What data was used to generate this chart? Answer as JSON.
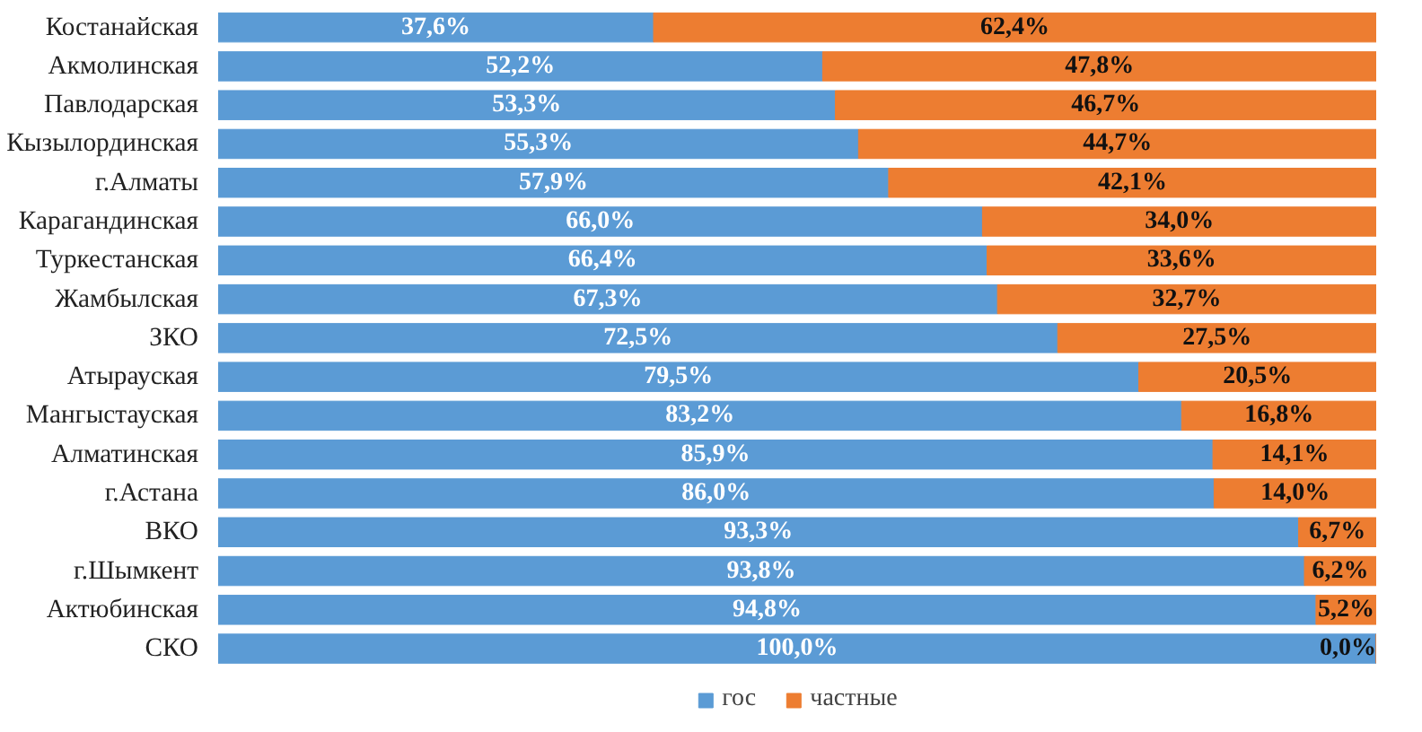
{
  "chart_data": {
    "type": "bar",
    "orientation": "horizontal",
    "stacked": true,
    "categories": [
      "Костанайская",
      "Акмолинская",
      "Павлодарская",
      "Кызылординская",
      "г.Алматы",
      "Карагандинская",
      "Туркестанская",
      "Жамбылская",
      "ЗКО",
      "Атырауская",
      "Мангыстауская",
      "Алматинская",
      "г.Астана",
      "ВКО",
      "г.Шымкент",
      "Актюбинская",
      "СКО"
    ],
    "series": [
      {
        "name": "гос",
        "color": "#5b9bd5",
        "values": [
          37.6,
          52.2,
          53.3,
          55.3,
          57.9,
          66.0,
          66.4,
          67.3,
          72.5,
          79.5,
          83.2,
          85.9,
          86.0,
          93.3,
          93.8,
          94.8,
          100.0
        ],
        "value_labels": [
          "37,6%",
          "52,2%",
          "53,3%",
          "55,3%",
          "57,9%",
          "66,0%",
          "66,4%",
          "67,3%",
          "72,5%",
          "79,5%",
          "83,2%",
          "85,9%",
          "86,0%",
          "93,3%",
          "93,8%",
          "94,8%",
          "100,0%"
        ]
      },
      {
        "name": "частные",
        "color": "#ed7d31",
        "values": [
          62.4,
          47.8,
          46.7,
          44.7,
          42.1,
          34.0,
          33.6,
          32.7,
          27.5,
          20.5,
          16.8,
          14.1,
          14.0,
          6.7,
          6.2,
          5.2,
          0.0
        ],
        "value_labels": [
          "62,4%",
          "47,8%",
          "46,7%",
          "44,7%",
          "42,1%",
          "34,0%",
          "33,6%",
          "32,7%",
          "27,5%",
          "20,5%",
          "16,8%",
          "14,1%",
          "14,0%",
          "6,7%",
          "6,2%",
          "5,2%",
          "0,0%"
        ]
      }
    ],
    "xlim": [
      0,
      100
    ],
    "tick_labels": "y",
    "legend": "bottom"
  }
}
